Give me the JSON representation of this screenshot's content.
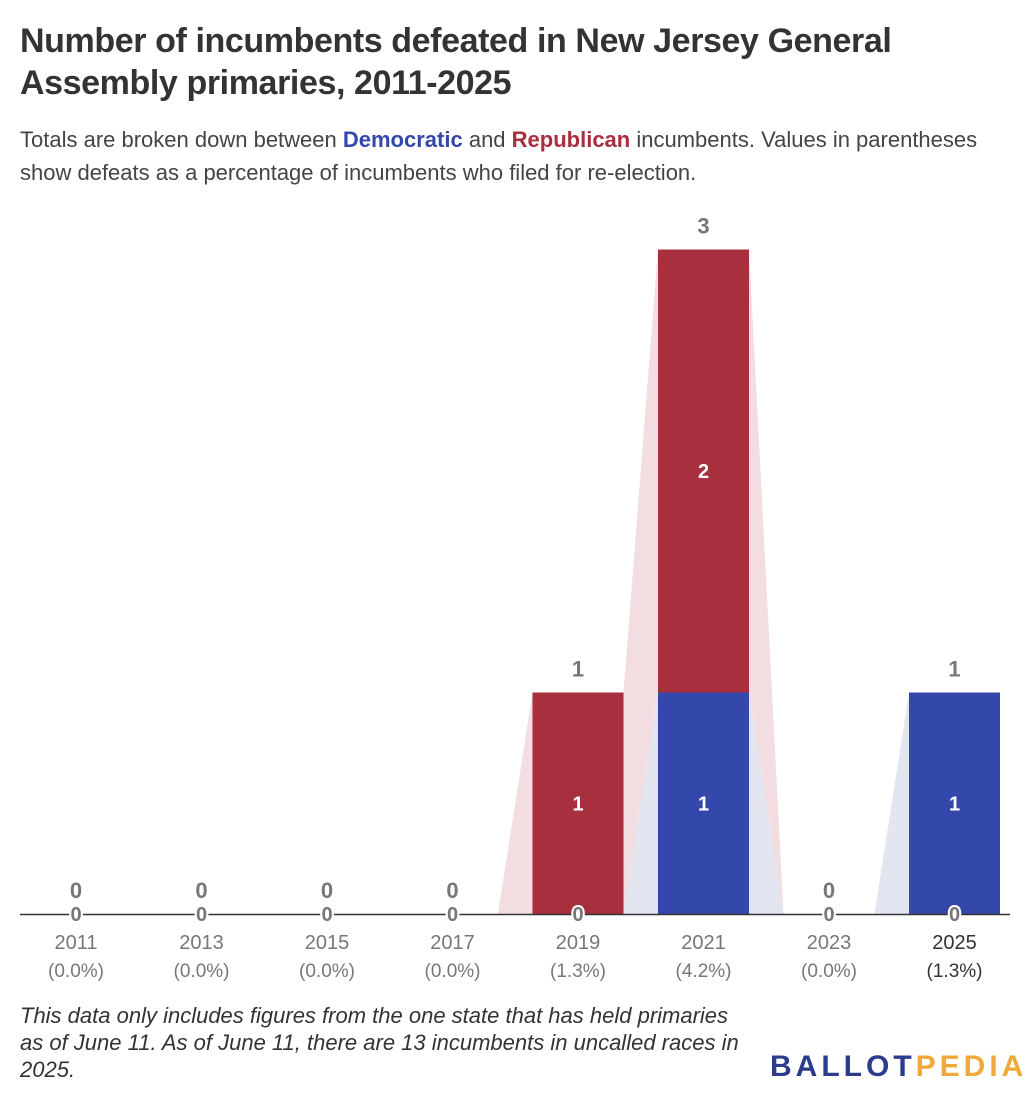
{
  "title": "Number of incumbents defeated in New Jersey General Assembly primaries, 2011-2025",
  "subtitle": {
    "prefix": "Totals are broken down between ",
    "democratic": "Democratic",
    "middle": " and ",
    "republican": "Republican",
    "suffix": " incumbents. Values in parentheses show defeats as a percentage of incumbents who filed for re-election."
  },
  "colors": {
    "democratic": "#3448ab",
    "republican": "#a82f3e",
    "democratic_connector": "#e3e5f1",
    "republican_connector": "#f2dde0",
    "axis": "#333333",
    "total_label": "#777777",
    "tick_label": "#777777"
  },
  "chart_data": {
    "type": "bar",
    "stacked": true,
    "categories": [
      "2011",
      "2013",
      "2015",
      "2017",
      "2019",
      "2021",
      "2023",
      "2025"
    ],
    "percent_labels": [
      "(0.0%)",
      "(0.0%)",
      "(0.0%)",
      "(0.0%)",
      "(1.3%)",
      "(4.2%)",
      "(0.0%)",
      "(1.3%)"
    ],
    "series": [
      {
        "name": "Democratic",
        "values": [
          0,
          0,
          0,
          0,
          0,
          1,
          0,
          1
        ]
      },
      {
        "name": "Republican",
        "values": [
          0,
          0,
          0,
          0,
          1,
          2,
          0,
          0
        ]
      }
    ],
    "totals": [
      0,
      0,
      0,
      0,
      1,
      3,
      0,
      1
    ],
    "ylim": [
      0,
      3
    ],
    "grid": false,
    "legend": "inline in subtitle"
  },
  "footnote": "This data only includes figures from the one state that has held primaries as of June 11. As of June 11, there are 13 incumbents in uncalled races in 2025.",
  "logo": {
    "part1": "BALLOT",
    "part2": "PEDIA"
  }
}
